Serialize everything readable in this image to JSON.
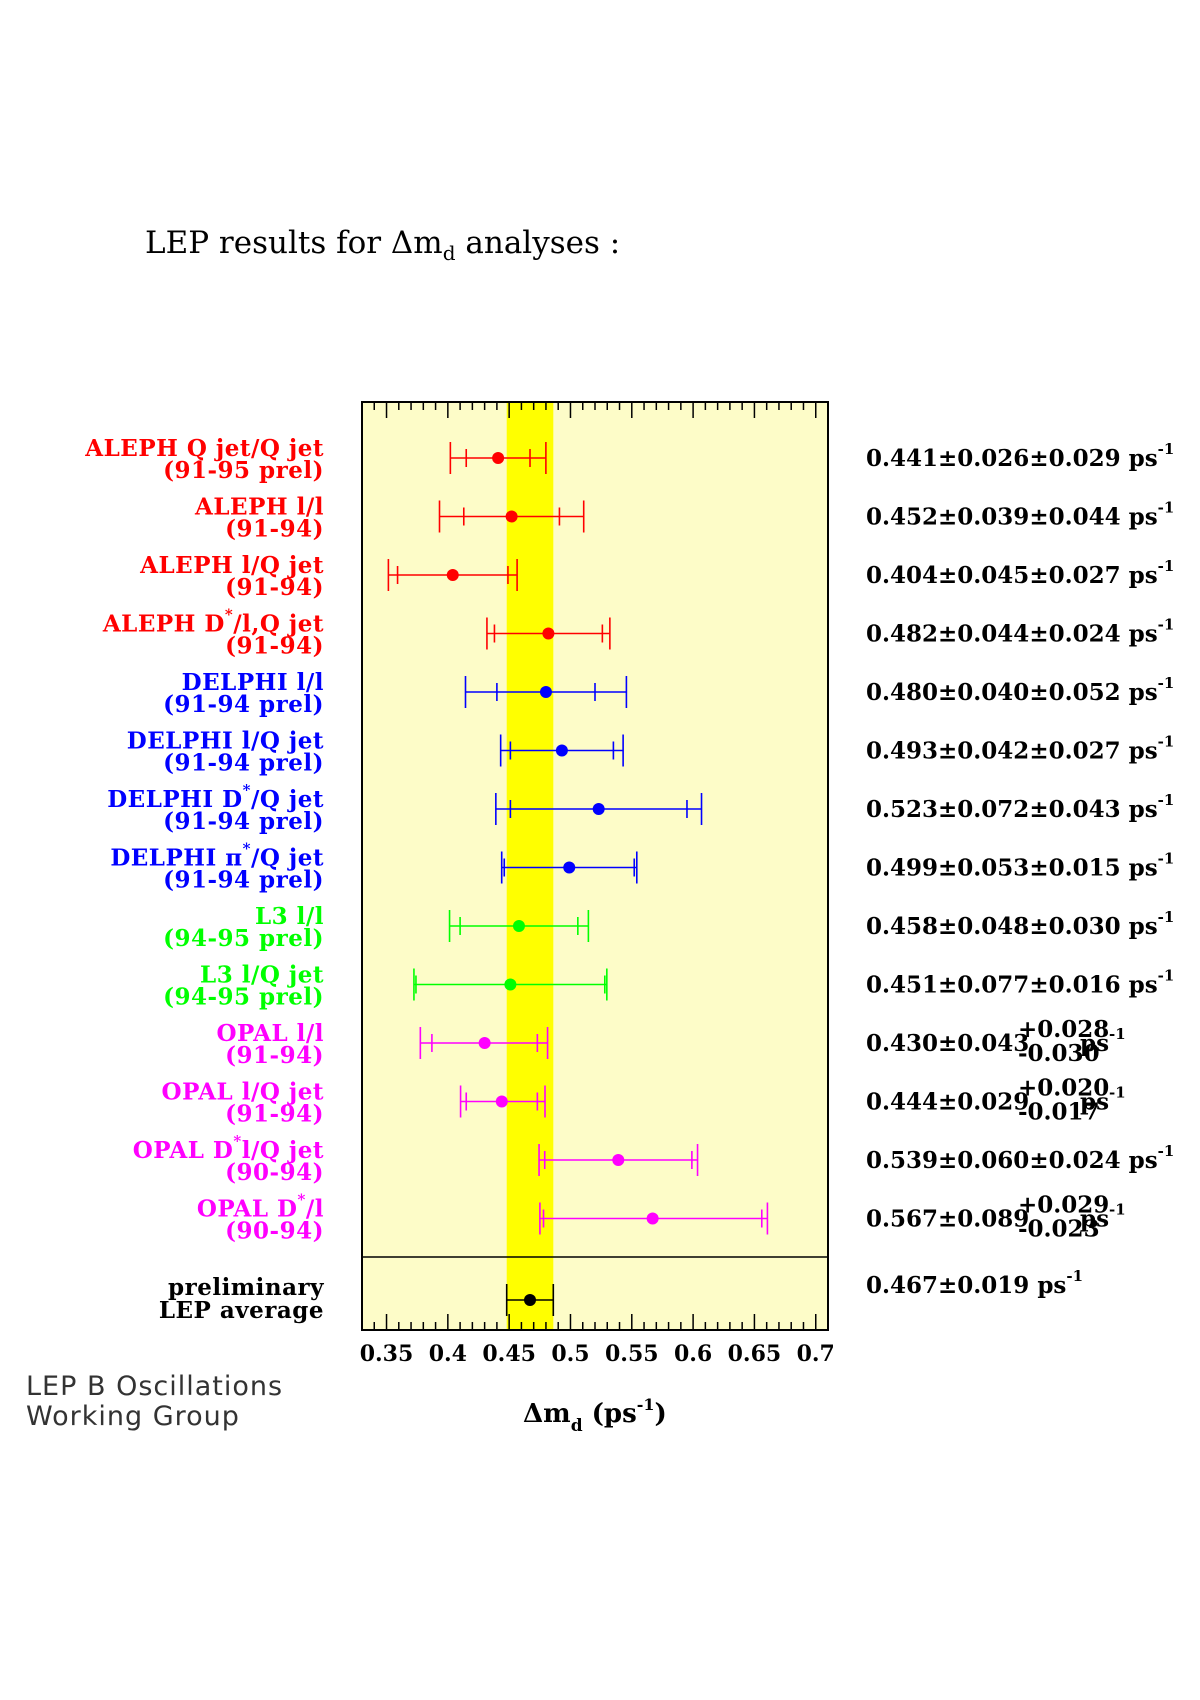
{
  "title_text": "LEP results for Δm",
  "title_sub": "d",
  "title_suffix": " analyses :",
  "credit": [
    "LEP B Oscillations",
    "Working Group"
  ],
  "colors": {
    "panel_bg": "#fdfcc8",
    "band": "#ffff00",
    "ALEPH": "#ff0000",
    "DELPHI": "#0000ff",
    "L3": "#00ff00",
    "OPAL": "#ff00ff",
    "average": "#000000"
  },
  "chart_data": {
    "type": "forest",
    "xlabel": "Δm",
    "xlabel_sub": "d",
    "xlabel_unit": "(ps",
    "xlabel_unit_sup": "-1",
    "xlabel_close": ")",
    "xlim": [
      0.33,
      0.71
    ],
    "xticks": [
      "0.35",
      "0.4",
      "0.45",
      "0.5",
      "0.55",
      "0.6",
      "0.65",
      "0.7"
    ],
    "band": {
      "center": 0.467,
      "error": 0.019
    },
    "measurements": [
      {
        "experiment": "ALEPH",
        "label1": "ALEPH Q jet/Q jet",
        "label2": "(91-95 prel)",
        "value": 0.441,
        "stat": 0.026,
        "syst_plus": 0.029,
        "syst_minus": 0.029,
        "result": "0.441±0.026±0.029 ps",
        "result_sup": "-1"
      },
      {
        "experiment": "ALEPH",
        "label1": "ALEPH l/l",
        "label2": "(91-94)",
        "value": 0.452,
        "stat": 0.039,
        "syst_plus": 0.044,
        "syst_minus": 0.044,
        "result": "0.452±0.039±0.044 ps",
        "result_sup": "-1"
      },
      {
        "experiment": "ALEPH",
        "label1": "ALEPH l/Q jet",
        "label2": "(91-94)",
        "value": 0.404,
        "stat": 0.045,
        "syst_plus": 0.027,
        "syst_minus": 0.027,
        "result": "0.404±0.045±0.027 ps",
        "result_sup": "-1"
      },
      {
        "experiment": "ALEPH",
        "label1": "ALEPH D",
        "label1_sup": "*",
        "label1_tail": "/l,Q jet",
        "label2": "(91-94)",
        "value": 0.482,
        "stat": 0.044,
        "syst_plus": 0.024,
        "syst_minus": 0.024,
        "result": "0.482±0.044±0.024 ps",
        "result_sup": "-1"
      },
      {
        "experiment": "DELPHI",
        "label1": "DELPHI l/l",
        "label2": "(91-94 prel)",
        "value": 0.48,
        "stat": 0.04,
        "syst_plus": 0.052,
        "syst_minus": 0.052,
        "result": "0.480±0.040±0.052 ps",
        "result_sup": "-1"
      },
      {
        "experiment": "DELPHI",
        "label1": "DELPHI l/Q jet",
        "label2": "(91-94 prel)",
        "value": 0.493,
        "stat": 0.042,
        "syst_plus": 0.027,
        "syst_minus": 0.027,
        "result": "0.493±0.042±0.027 ps",
        "result_sup": "-1"
      },
      {
        "experiment": "DELPHI",
        "label1": "DELPHI D",
        "label1_sup": "*",
        "label1_tail": "/Q jet",
        "label2": "(91-94 prel)",
        "value": 0.523,
        "stat": 0.072,
        "syst_plus": 0.043,
        "syst_minus": 0.043,
        "result": "0.523±0.072±0.043 ps",
        "result_sup": "-1"
      },
      {
        "experiment": "DELPHI",
        "label1": "DELPHI π",
        "label1_sup": "*",
        "label1_tail": "/Q jet",
        "label2": "(91-94 prel)",
        "value": 0.499,
        "stat": 0.053,
        "syst_plus": 0.015,
        "syst_minus": 0.015,
        "result": "0.499±0.053±0.015 ps",
        "result_sup": "-1"
      },
      {
        "experiment": "L3",
        "label1": "L3 l/l",
        "label2": "(94-95 prel)",
        "value": 0.458,
        "stat": 0.048,
        "syst_plus": 0.03,
        "syst_minus": 0.03,
        "result": "0.458±0.048±0.030 ps",
        "result_sup": "-1"
      },
      {
        "experiment": "L3",
        "label1": "L3 l/Q jet",
        "label2": "(94-95 prel)",
        "value": 0.451,
        "stat": 0.077,
        "syst_plus": 0.016,
        "syst_minus": 0.016,
        "result": "0.451±0.077±0.016 ps",
        "result_sup": "-1"
      },
      {
        "experiment": "OPAL",
        "label1": "OPAL l/l",
        "label2": "(91-94)",
        "value": 0.43,
        "stat": 0.043,
        "syst_plus": 0.028,
        "syst_minus": 0.03,
        "result": "0.430±0.043",
        "result_asym_plus": "+0.028",
        "result_asym_minus": "-0.030",
        "result_unit": "ps",
        "result_sup": "-1"
      },
      {
        "experiment": "OPAL",
        "label1": "OPAL l/Q jet",
        "label2": "(91-94)",
        "value": 0.444,
        "stat": 0.029,
        "syst_plus": 0.02,
        "syst_minus": 0.017,
        "result": "0.444±0.029",
        "result_asym_plus": "+0.020",
        "result_asym_minus": "-0.017",
        "result_unit": "ps",
        "result_sup": "-1"
      },
      {
        "experiment": "OPAL",
        "label1": "OPAL D",
        "label1_sup": "*",
        "label1_tail": "l/Q jet",
        "label2": "(90-94)",
        "value": 0.539,
        "stat": 0.06,
        "syst_plus": 0.024,
        "syst_minus": 0.024,
        "result": "0.539±0.060±0.024 ps",
        "result_sup": "-1"
      },
      {
        "experiment": "OPAL",
        "label1": "OPAL D",
        "label1_sup": "*",
        "label1_tail": "/l",
        "label2": "(90-94)",
        "value": 0.567,
        "stat": 0.089,
        "syst_plus": 0.029,
        "syst_minus": 0.023,
        "result": "0.567±0.089",
        "result_asym_plus": "+0.029",
        "result_asym_minus": "-0.023",
        "result_unit": "ps",
        "result_sup": "-1"
      }
    ],
    "average": {
      "label1": "preliminary",
      "label2": "LEP average",
      "value": 0.467,
      "error": 0.019,
      "result": "0.467±0.019 ps",
      "result_sup": "-1"
    }
  }
}
